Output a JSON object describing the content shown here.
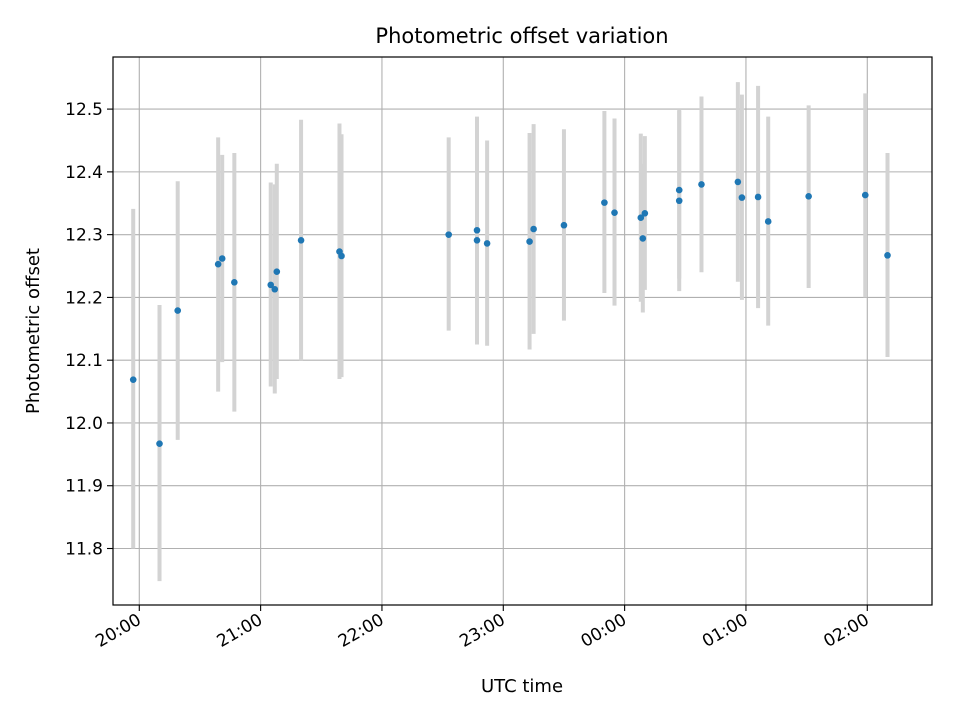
{
  "chart_data": {
    "type": "scatter",
    "title": "Photometric offset variation",
    "xlabel": "UTC time",
    "ylabel": "Photometric offset",
    "xlim": [
      "19:47",
      "02:32"
    ],
    "ylim": [
      11.71,
      12.583
    ],
    "x_ticks": [
      "20:00",
      "21:00",
      "22:00",
      "23:00",
      "00:00",
      "01:00",
      "02:00"
    ],
    "y_ticks": [
      "11.8",
      "11.9",
      "12.0",
      "12.1",
      "12.2",
      "12.3",
      "12.4",
      "12.5"
    ],
    "grid": true,
    "colors": {
      "point": "#1f77b4",
      "errorbar": "#d3d3d3",
      "grid": "#b0b0b0"
    },
    "series": [
      {
        "points": [
          {
            "t": "19:57",
            "y": 12.069,
            "lo": 11.8,
            "hi": 12.341
          },
          {
            "t": "20:10",
            "y": 11.967,
            "lo": 11.748,
            "hi": 12.188
          },
          {
            "t": "20:19",
            "y": 12.179,
            "lo": 11.973,
            "hi": 12.385
          },
          {
            "t": "20:39",
            "y": 12.253,
            "lo": 12.05,
            "hi": 12.455
          },
          {
            "t": "20:41",
            "y": 12.262,
            "lo": 12.097,
            "hi": 12.427
          },
          {
            "t": "20:47",
            "y": 12.224,
            "lo": 12.018,
            "hi": 12.43
          },
          {
            "t": "21:05",
            "y": 12.22,
            "lo": 12.058,
            "hi": 12.383
          },
          {
            "t": "21:07",
            "y": 12.213,
            "lo": 12.047,
            "hi": 12.38
          },
          {
            "t": "21:08",
            "y": 12.241,
            "lo": 12.07,
            "hi": 12.413
          },
          {
            "t": "21:20",
            "y": 12.291,
            "lo": 12.1,
            "hi": 12.483
          },
          {
            "t": "21:39",
            "y": 12.273,
            "lo": 12.07,
            "hi": 12.477
          },
          {
            "t": "21:40",
            "y": 12.266,
            "lo": 12.073,
            "hi": 12.46
          },
          {
            "t": "22:33",
            "y": 12.3,
            "lo": 12.147,
            "hi": 12.455
          },
          {
            "t": "22:47",
            "y": 12.291,
            "lo": 12.125,
            "hi": 12.46
          },
          {
            "t": "22:47",
            "y": 12.307,
            "lo": 12.127,
            "hi": 12.488
          },
          {
            "t": "22:52",
            "y": 12.286,
            "lo": 12.123,
            "hi": 12.45
          },
          {
            "t": "23:13",
            "y": 12.289,
            "lo": 12.117,
            "hi": 12.462
          },
          {
            "t": "23:15",
            "y": 12.309,
            "lo": 12.142,
            "hi": 12.476
          },
          {
            "t": "23:30",
            "y": 12.315,
            "lo": 12.163,
            "hi": 12.468
          },
          {
            "t": "23:50",
            "y": 12.351,
            "lo": 12.207,
            "hi": 12.497
          },
          {
            "t": "23:55",
            "y": 12.335,
            "lo": 12.187,
            "hi": 12.485
          },
          {
            "t": "00:08",
            "y": 12.327,
            "lo": 12.193,
            "hi": 12.461
          },
          {
            "t": "00:09",
            "y": 12.294,
            "lo": 12.176,
            "hi": 12.413
          },
          {
            "t": "00:10",
            "y": 12.334,
            "lo": 12.212,
            "hi": 12.457
          },
          {
            "t": "00:27",
            "y": 12.371,
            "lo": 12.23,
            "hi": 12.5
          },
          {
            "t": "00:27",
            "y": 12.354,
            "lo": 12.21,
            "hi": 12.497
          },
          {
            "t": "00:38",
            "y": 12.38,
            "lo": 12.24,
            "hi": 12.52
          },
          {
            "t": "00:56",
            "y": 12.384,
            "lo": 12.225,
            "hi": 12.543
          },
          {
            "t": "00:58",
            "y": 12.359,
            "lo": 12.196,
            "hi": 12.523
          },
          {
            "t": "01:06",
            "y": 12.36,
            "lo": 12.183,
            "hi": 12.537
          },
          {
            "t": "01:11",
            "y": 12.321,
            "lo": 12.155,
            "hi": 12.488
          },
          {
            "t": "01:31",
            "y": 12.361,
            "lo": 12.215,
            "hi": 12.506
          },
          {
            "t": "01:59",
            "y": 12.363,
            "lo": 12.2,
            "hi": 12.525
          },
          {
            "t": "02:10",
            "y": 12.267,
            "lo": 12.105,
            "hi": 12.43
          }
        ]
      }
    ]
  }
}
